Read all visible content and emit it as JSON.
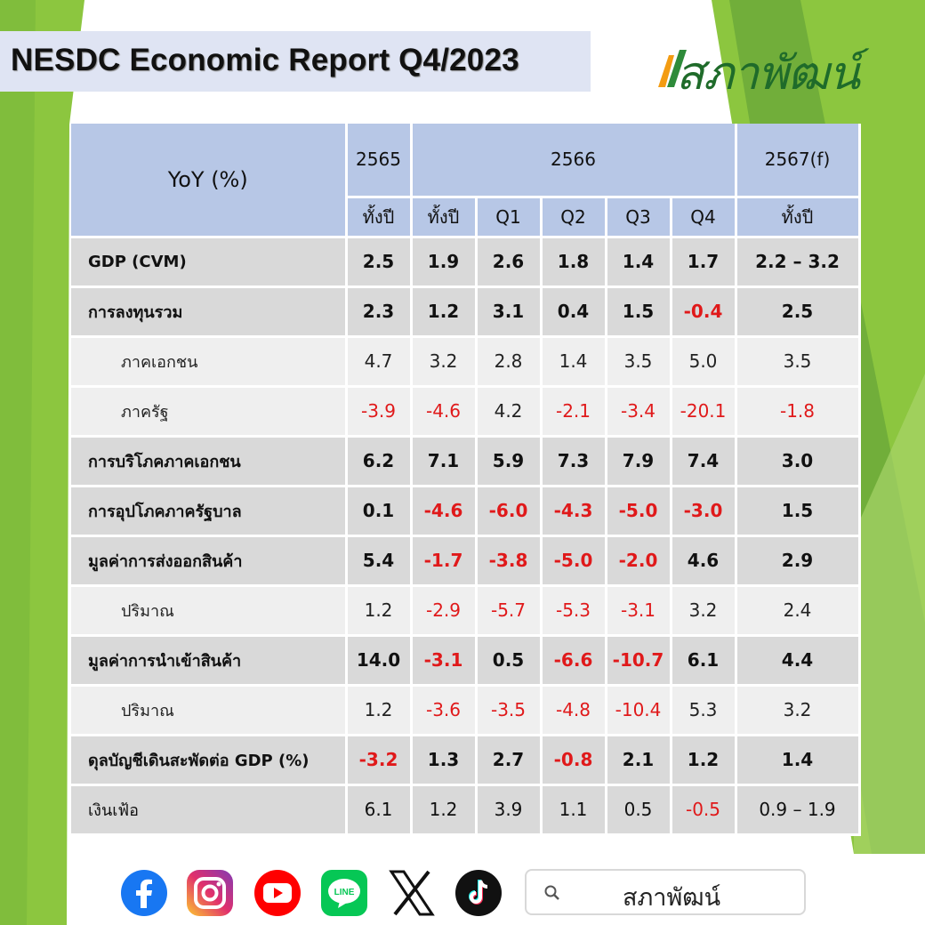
{
  "title": "NESDC Economic Report Q4/2023",
  "brand": "สภาพัฒน์",
  "colors": {
    "header_bg": "#b7c7e6",
    "gray_row": "#d9d9d9",
    "light_row": "#efefef",
    "negative": "#e0191a",
    "accent_green": "#8cc63f"
  },
  "table": {
    "corner_label": "YoY (%)",
    "years": {
      "y2565": "2565",
      "y2566": "2566",
      "y2567": "2567(f)"
    },
    "subheaders": [
      "ทั้งปี",
      "ทั้งปี",
      "Q1",
      "Q2",
      "Q3",
      "Q4",
      "ทั้งปี"
    ],
    "rows": [
      {
        "label": "GDP (CVM)",
        "values": [
          "2.5",
          "1.9",
          "2.6",
          "1.8",
          "1.4",
          "1.7",
          "2.2 – 3.2"
        ]
      },
      {
        "label": "การลงทุนรวม",
        "values": [
          "2.3",
          "1.2",
          "3.1",
          "0.4",
          "1.5",
          "-0.4",
          "2.5"
        ]
      },
      {
        "label": "ภาคเอกชน",
        "values": [
          "4.7",
          "3.2",
          "2.8",
          "1.4",
          "3.5",
          "5.0",
          "3.5"
        ]
      },
      {
        "label": "ภาครัฐ",
        "values": [
          "-3.9",
          "-4.6",
          "4.2",
          "-2.1",
          "-3.4",
          "-20.1",
          "-1.8"
        ]
      },
      {
        "label": "การบริโภคภาคเอกชน",
        "values": [
          "6.2",
          "7.1",
          "5.9",
          "7.3",
          "7.9",
          "7.4",
          "3.0"
        ]
      },
      {
        "label": "การอุปโภคภาครัฐบาล",
        "values": [
          "0.1",
          "-4.6",
          "-6.0",
          "-4.3",
          "-5.0",
          "-3.0",
          "1.5"
        ]
      },
      {
        "label": "มูลค่าการส่งออกสินค้า",
        "values": [
          "5.4",
          "-1.7",
          "-3.8",
          "-5.0",
          "-2.0",
          "4.6",
          "2.9"
        ]
      },
      {
        "label": "ปริมาณ",
        "values": [
          "1.2",
          "-2.9",
          "-5.7",
          "-5.3",
          "-3.1",
          "3.2",
          "2.4"
        ]
      },
      {
        "label": "มูลค่าการนำเข้าสินค้า",
        "values": [
          "14.0",
          "-3.1",
          "0.5",
          "-6.6",
          "-10.7",
          "6.1",
          "4.4"
        ]
      },
      {
        "label": "ปริมาณ",
        "values": [
          "1.2",
          "-3.6",
          "-3.5",
          "-4.8",
          "-10.4",
          "5.3",
          "3.2"
        ]
      },
      {
        "label": "ดุลบัญชีเดินสะพัดต่อ GDP (%)",
        "values": [
          "-3.2",
          "1.3",
          "2.7",
          "-0.8",
          "2.1",
          "1.2",
          "1.4"
        ]
      },
      {
        "label": "เงินเฟ้อ",
        "values": [
          "6.1",
          "1.2",
          "3.9",
          "1.1",
          "0.5",
          "-0.5",
          "0.9 – 1.9"
        ]
      }
    ]
  },
  "footer": {
    "icons": [
      "facebook-icon",
      "instagram-icon",
      "youtube-icon",
      "line-icon",
      "x-icon",
      "tiktok-icon"
    ],
    "search_text": "สภาพัฒน์"
  }
}
